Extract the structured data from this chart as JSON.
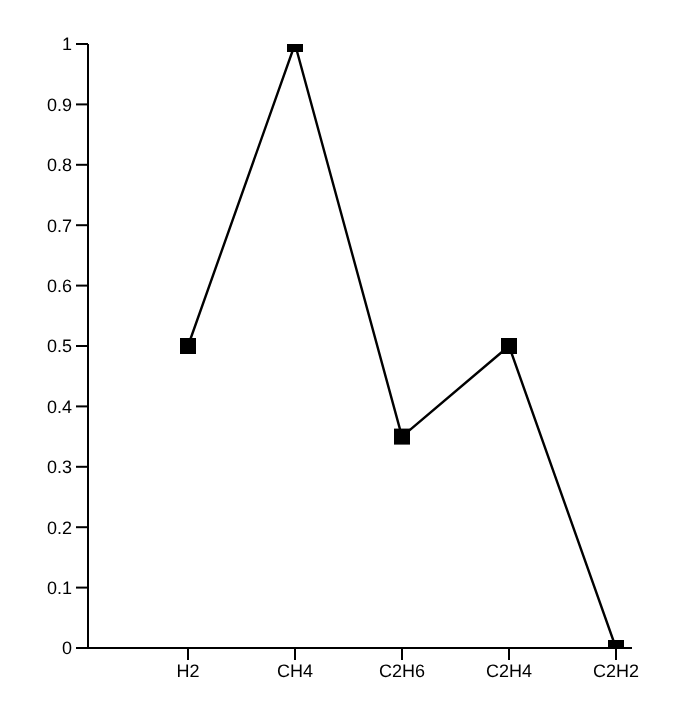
{
  "chart_data": {
    "type": "line",
    "categories": [
      "H2",
      "CH4",
      "C2H6",
      "C2H4",
      "C2H2"
    ],
    "series": [
      {
        "color": "#000000",
        "values": [
          0.5,
          1,
          0.35,
          0.5,
          0
        ]
      }
    ],
    "ylim": [
      0,
      1
    ],
    "yticks": [
      0,
      0.1,
      0.2,
      0.3,
      0.4,
      0.5,
      0.6,
      0.7,
      0.8,
      0.9,
      1
    ],
    "marker": "square",
    "line_style": "solid",
    "grid": false,
    "legend": false
  }
}
